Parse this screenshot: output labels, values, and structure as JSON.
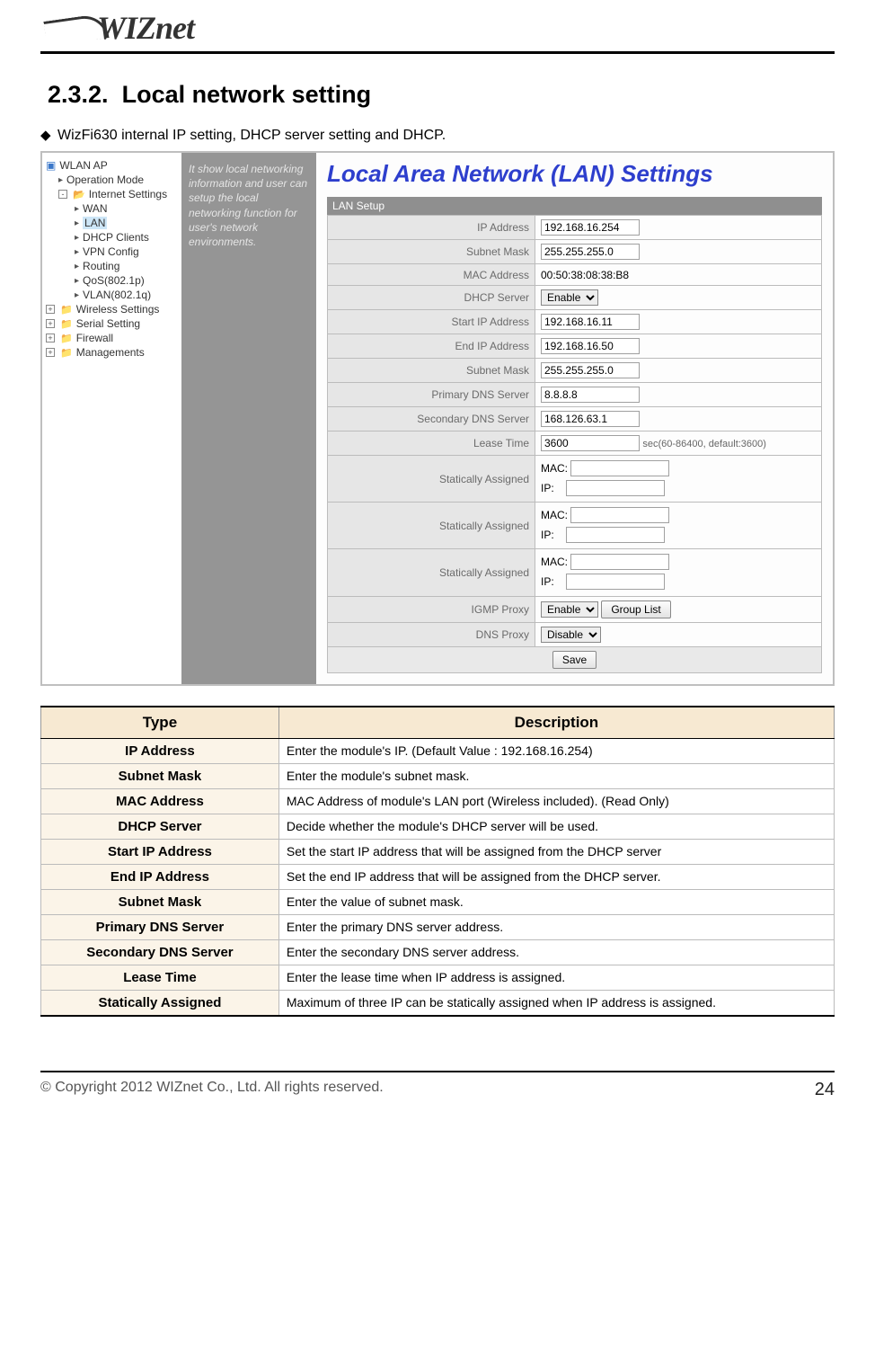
{
  "logo": "WIZnet",
  "section_number": "2.3.2.",
  "section_title": "Local network setting",
  "intro": "WizFi630 internal IP setting, DHCP server setting and DHCP.",
  "tree": {
    "root": "WLAN AP",
    "operation_mode": "Operation Mode",
    "internet_settings": "Internet Settings",
    "wan": "WAN",
    "lan": "LAN",
    "dhcp_clients": "DHCP Clients",
    "vpn_config": "VPN Config",
    "routing": "Routing",
    "qos": "QoS(802.1p)",
    "vlan": "VLAN(802.1q)",
    "wireless": "Wireless Settings",
    "serial": "Serial Setting",
    "firewall": "Firewall",
    "managements": "Managements"
  },
  "sidebar_desc": "It show local networking information and user can setup the local networking function for user's network environments.",
  "panel_title": "Local Area Network (LAN) Settings",
  "lan_setup": "LAN Setup",
  "fields": {
    "ip_address": {
      "label": "IP Address",
      "value": "192.168.16.254"
    },
    "subnet_mask": {
      "label": "Subnet Mask",
      "value": "255.255.255.0"
    },
    "mac_address": {
      "label": "MAC Address",
      "value": "00:50:38:08:38:B8"
    },
    "dhcp_server": {
      "label": "DHCP Server",
      "value": "Enable"
    },
    "start_ip": {
      "label": "Start IP Address",
      "value": "192.168.16.11"
    },
    "end_ip": {
      "label": "End IP Address",
      "value": "192.168.16.50"
    },
    "subnet_mask2": {
      "label": "Subnet Mask",
      "value": "255.255.255.0"
    },
    "primary_dns": {
      "label": "Primary DNS Server",
      "value": "8.8.8.8"
    },
    "secondary_dns": {
      "label": "Secondary DNS Server",
      "value": "168.126.63.1"
    },
    "lease_time": {
      "label": "Lease Time",
      "value": "3600",
      "hint": "sec(60-86400, default:3600)"
    },
    "static1": {
      "label": "Statically Assigned",
      "mac": "MAC:",
      "ip": "IP:"
    },
    "static2": {
      "label": "Statically Assigned",
      "mac": "MAC:",
      "ip": "IP:"
    },
    "static3": {
      "label": "Statically Assigned",
      "mac": "MAC:",
      "ip": "IP:"
    },
    "igmp_proxy": {
      "label": "IGMP Proxy",
      "value": "Enable",
      "btn": "Group List"
    },
    "dns_proxy": {
      "label": "DNS Proxy",
      "value": "Disable"
    }
  },
  "save_btn": "Save",
  "desc_table": {
    "header_type": "Type",
    "header_desc": "Description",
    "rows": [
      {
        "type": "IP Address",
        "desc": "Enter the module's IP. (Default Value : 192.168.16.254)"
      },
      {
        "type": "Subnet Mask",
        "desc": "Enter the module's subnet mask."
      },
      {
        "type": "MAC Address",
        "desc": "MAC Address of module's LAN port (Wireless included). (Read Only)"
      },
      {
        "type": "DHCP Server",
        "desc": "Decide whether the module's DHCP server will be used."
      },
      {
        "type": "Start IP Address",
        "desc": "Set the start IP address that will be assigned from the DHCP server"
      },
      {
        "type": "End IP Address",
        "desc": "Set the end IP address that will be assigned from the DHCP server."
      },
      {
        "type": "Subnet Mask",
        "desc": "Enter the value of subnet mask."
      },
      {
        "type": "Primary DNS Server",
        "desc": "Enter the primary DNS server address."
      },
      {
        "type": "Secondary DNS Server",
        "desc": "Enter the secondary DNS server address."
      },
      {
        "type": "Lease Time",
        "desc": "Enter the lease time when IP address is assigned."
      },
      {
        "type": "Statically Assigned",
        "desc": "Maximum of three IP can be statically assigned when IP address is assigned."
      }
    ]
  },
  "footer": {
    "copyright": "© Copyright 2012 WIZnet Co., Ltd. All rights reserved.",
    "page": "24"
  }
}
